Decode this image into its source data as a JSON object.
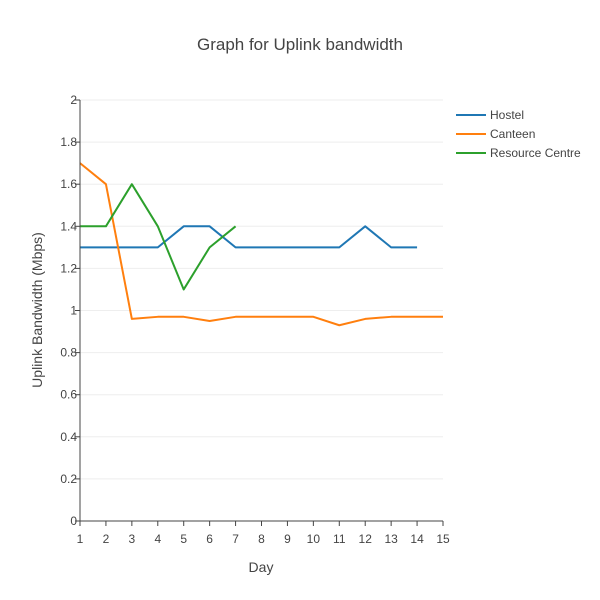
{
  "chart_data": {
    "type": "line",
    "title": "Graph for Uplink bandwidth",
    "xlabel": "Day",
    "ylabel": "Uplink Bandwidth (Mbps)",
    "xlim": [
      1,
      15
    ],
    "ylim": [
      0,
      2
    ],
    "x_ticks": [
      1,
      2,
      3,
      4,
      5,
      6,
      7,
      8,
      9,
      10,
      11,
      12,
      13,
      14,
      15
    ],
    "y_ticks": [
      0,
      0.2,
      0.4,
      0.6,
      0.8,
      1,
      1.2,
      1.4,
      1.6,
      1.8,
      2
    ],
    "grid": true,
    "legend_position": "top-right",
    "series": [
      {
        "name": "Hostel",
        "color": "#1f77b4",
        "x": [
          1,
          2,
          3,
          4,
          5,
          6,
          7,
          8,
          9,
          10,
          11,
          12,
          13,
          14
        ],
        "y": [
          1.3,
          1.3,
          1.3,
          1.3,
          1.4,
          1.4,
          1.3,
          1.3,
          1.3,
          1.3,
          1.3,
          1.4,
          1.3,
          1.3
        ]
      },
      {
        "name": "Canteen",
        "color": "#ff7f0e",
        "x": [
          1,
          2,
          3,
          4,
          5,
          6,
          7,
          8,
          9,
          10,
          11,
          12,
          13,
          14,
          15
        ],
        "y": [
          1.7,
          1.6,
          0.96,
          0.97,
          0.97,
          0.95,
          0.97,
          0.97,
          0.97,
          0.97,
          0.93,
          0.96,
          0.97,
          0.97,
          0.97
        ]
      },
      {
        "name": "Resource Centre",
        "color": "#2ca02c",
        "x": [
          1,
          2,
          3,
          4,
          5,
          6,
          7
        ],
        "y": [
          1.4,
          1.4,
          1.6,
          1.4,
          1.1,
          1.3,
          1.4
        ]
      }
    ]
  }
}
